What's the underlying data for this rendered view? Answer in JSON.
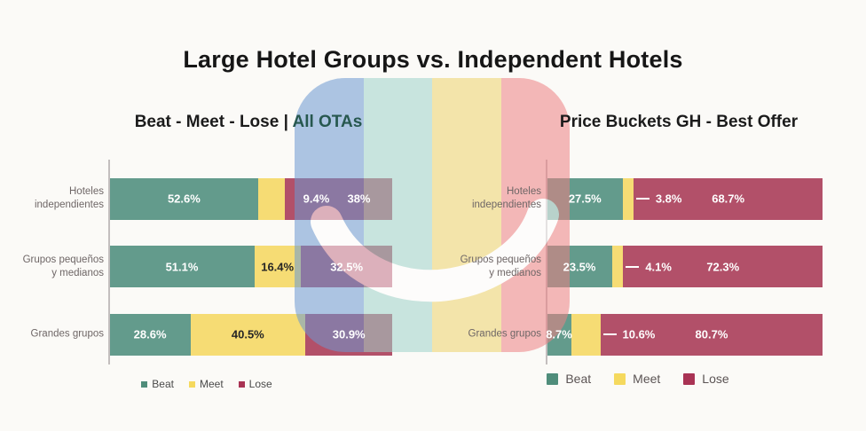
{
  "title": "Large Hotel Groups vs. Independent Hotels",
  "legend": [
    "Beat",
    "Meet",
    "Lose"
  ],
  "colors": {
    "beat": "#639b8c",
    "meet": "#f6dc74",
    "lose": "#b25069",
    "legend_beat": "#4f8d7b",
    "legend_meet": "#f5d95e",
    "legend_lose": "#a93354",
    "subtitle_accent": "#27584f",
    "watermark_stripes": [
      "#6c99d2",
      "#a0d3ca",
      "#eed36d",
      "#ee8184"
    ]
  },
  "chart_data": [
    {
      "type": "bar",
      "orientation": "horizontal-stacked",
      "subtitle_prefix": "Beat - Meet - Lose | ",
      "subtitle_accent": "All OTAs",
      "categories": [
        "Hoteles independientes",
        "Grupos pequeños y medianos",
        "Grandes grupos"
      ],
      "categories_lines": [
        [
          "Hoteles",
          "independientes"
        ],
        [
          "Grupos pequeños",
          "y medianos"
        ],
        [
          "Grandes grupos"
        ]
      ],
      "series": [
        {
          "name": "Beat",
          "values": [
            52.6,
            51.1,
            28.6
          ]
        },
        {
          "name": "Meet",
          "values": [
            9.4,
            16.4,
            40.5
          ]
        },
        {
          "name": "Lose",
          "values": [
            38.0,
            32.5,
            30.9
          ]
        }
      ],
      "value_labels": [
        [
          "52.6%",
          "9.4%",
          "38%"
        ],
        [
          "51.1%",
          "16.4%",
          "32.5%"
        ],
        [
          "28.6%",
          "40.5%",
          "30.9%"
        ]
      ],
      "xlim": [
        0,
        100
      ],
      "legend_position": "bottom",
      "grid": false
    },
    {
      "type": "bar",
      "orientation": "horizontal-stacked",
      "subtitle_prefix": "Price Buckets GH - Best Offer",
      "subtitle_accent": "",
      "categories": [
        "Hoteles independientes",
        "Grupos pequeños y medianos",
        "Grandes grupos"
      ],
      "categories_lines": [
        [
          "Hoteles",
          "independientes"
        ],
        [
          "Grupos pequeños",
          "y medianos"
        ],
        [
          "Grandes grupos"
        ]
      ],
      "series": [
        {
          "name": "Beat",
          "values": [
            27.5,
            23.5,
            8.7
          ]
        },
        {
          "name": "Meet",
          "values": [
            3.8,
            4.1,
            10.6
          ]
        },
        {
          "name": "Lose",
          "values": [
            68.7,
            72.3,
            80.7
          ]
        }
      ],
      "value_labels": [
        [
          "27.5%",
          "3.8%",
          "68.7%"
        ],
        [
          "23.5%",
          "4.1%",
          "72.3%"
        ],
        [
          "8.7%",
          "10.6%",
          "80.7%"
        ]
      ],
      "xlim": [
        0,
        100
      ],
      "legend_position": "bottom",
      "grid": false
    }
  ]
}
